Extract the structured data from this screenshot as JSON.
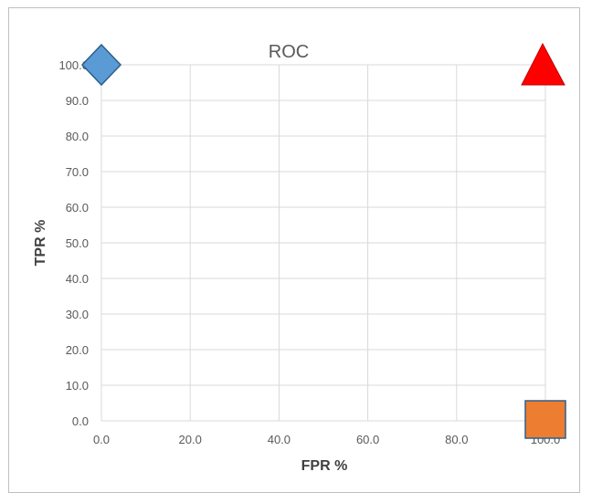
{
  "chart_data": {
    "type": "scatter",
    "title": "ROC",
    "xlabel": "FPR %",
    "ylabel": "TPR %",
    "xlim": [
      0,
      100
    ],
    "ylim": [
      0,
      100
    ],
    "xticks": [
      "0.0",
      "20.0",
      "40.0",
      "60.0",
      "80.0",
      "100.0"
    ],
    "yticks": [
      "0.0",
      "10.0",
      "20.0",
      "30.0",
      "40.0",
      "50.0",
      "60.0",
      "70.0",
      "80.0",
      "90.0",
      "100.0"
    ],
    "grid": true,
    "legend": "none",
    "points": [
      {
        "x": 0,
        "y": 100,
        "marker": "diamond",
        "color": "#5b9bd5"
      },
      {
        "x": 100,
        "y": 100,
        "marker": "triangle",
        "color": "#ff0000"
      },
      {
        "x": 100,
        "y": 0,
        "marker": "square",
        "color": "#ed7d31"
      }
    ]
  }
}
